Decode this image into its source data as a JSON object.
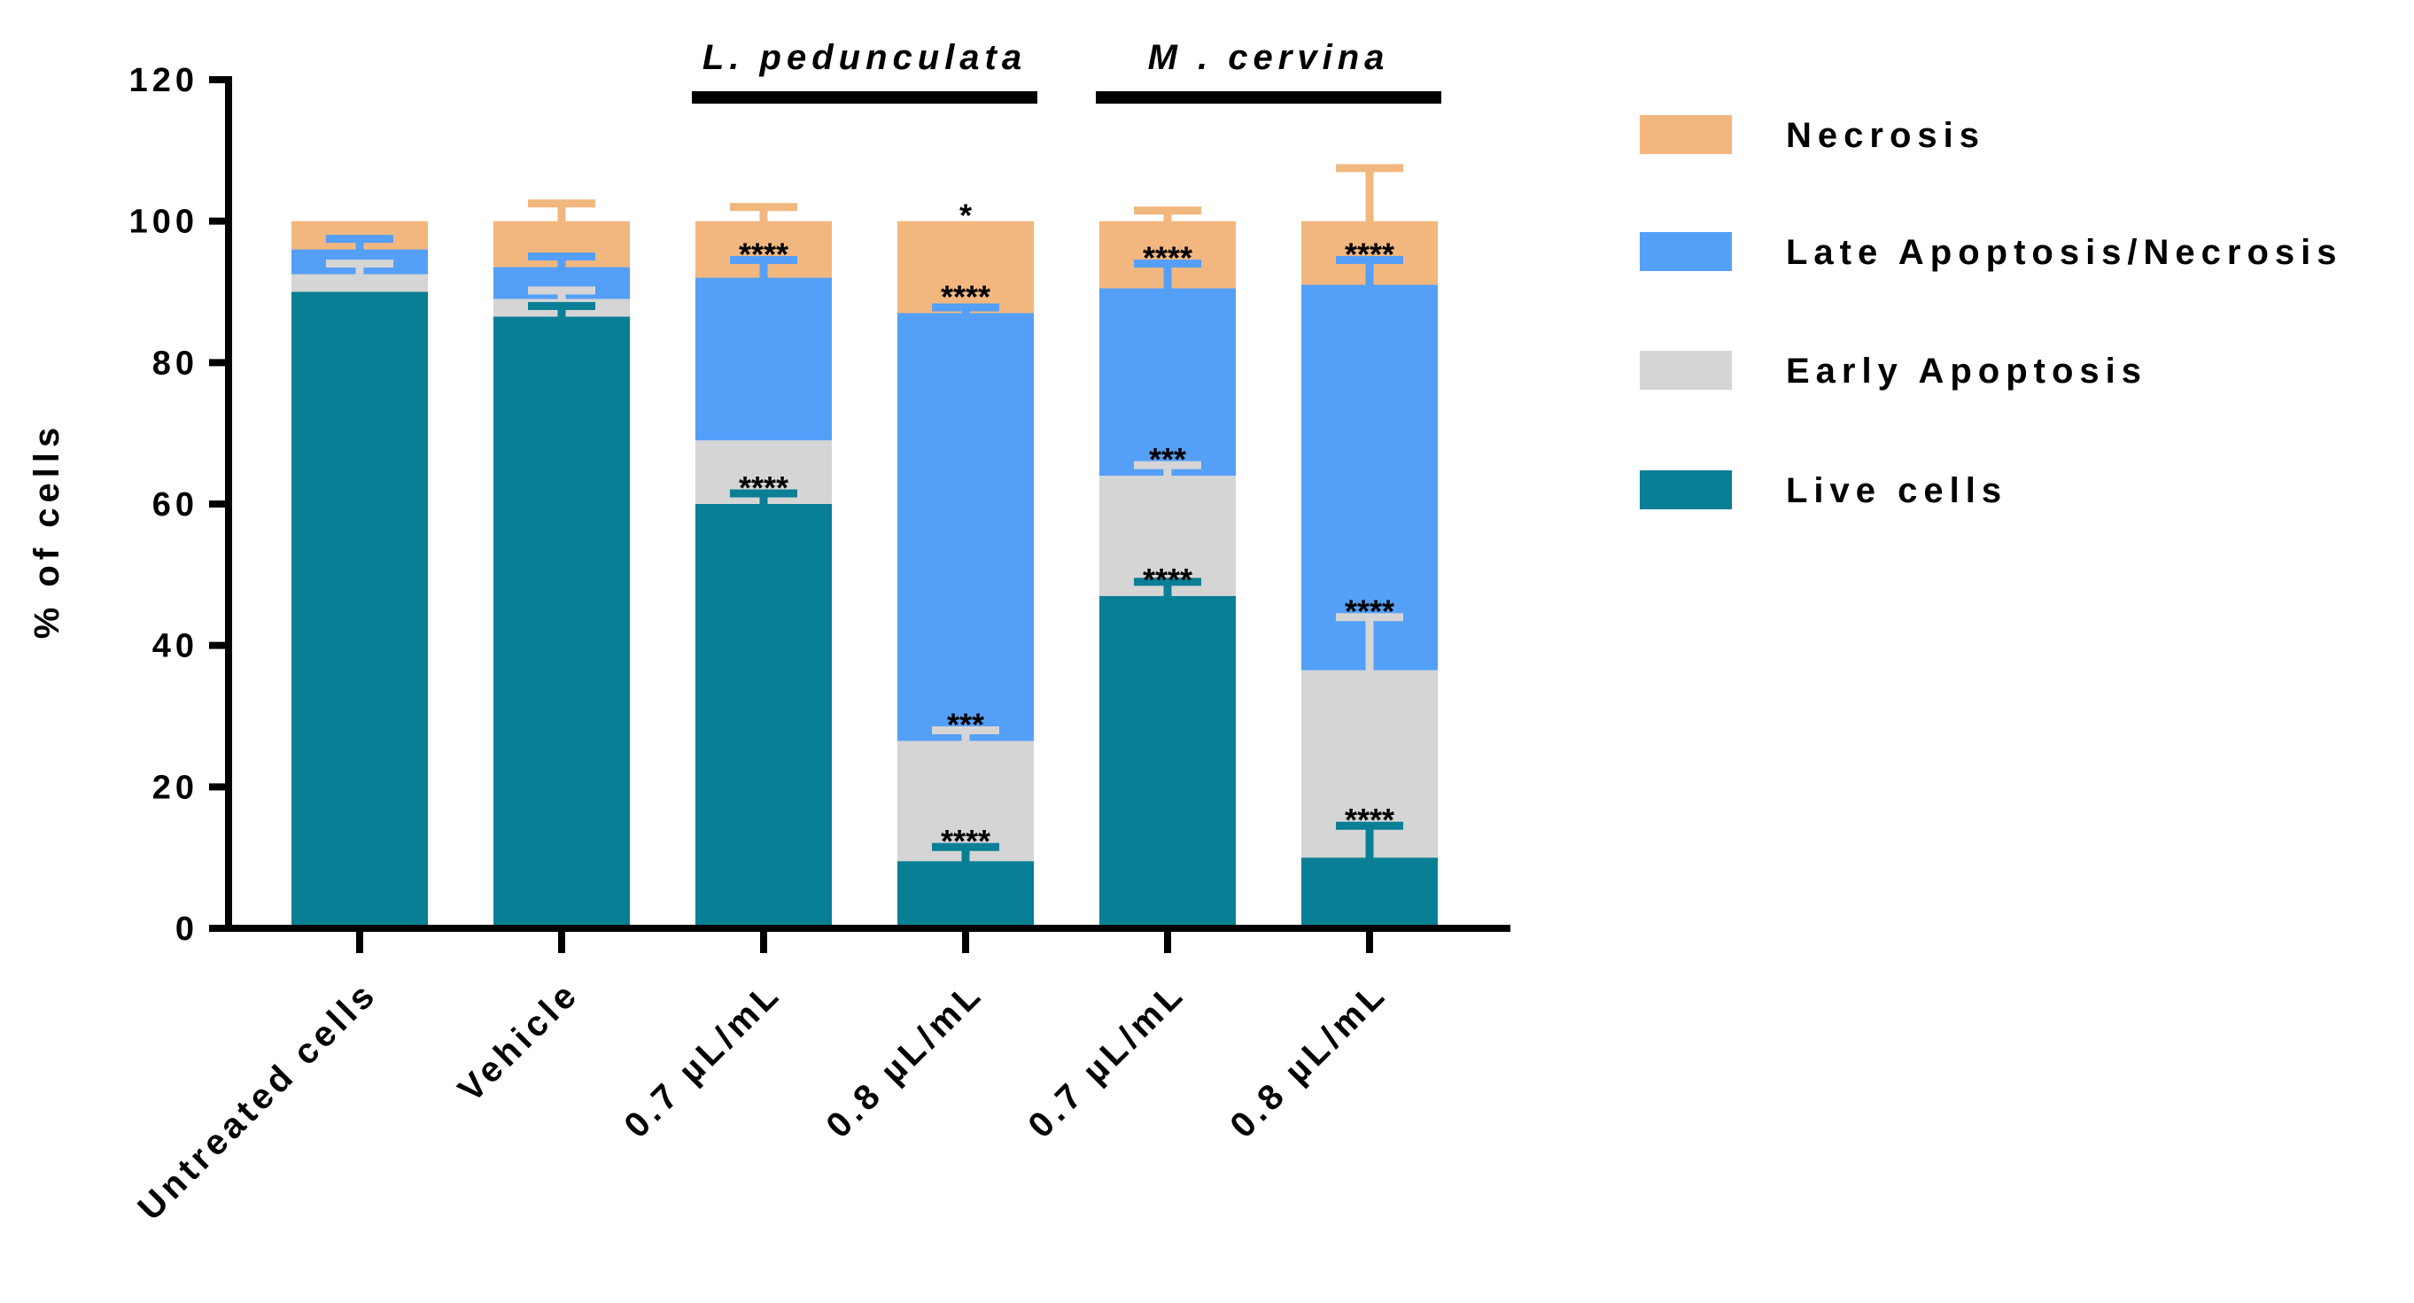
{
  "chart_data": {
    "type": "stacked-bar",
    "ylabel": "% of cells",
    "xlabel": "",
    "ylim": [
      0,
      120
    ],
    "yticks": [
      0,
      20,
      40,
      60,
      80,
      100,
      120
    ],
    "categories": [
      "Untreated cells",
      "Vehicle",
      "0.7 µL/mL",
      "0.8 µL/mL",
      "0.7 µL/mL",
      "0.8 µL/mL"
    ],
    "groups": [
      {
        "label": "L. pedunculata",
        "categories": [
          2,
          3
        ]
      },
      {
        "label": "M . cervina",
        "categories": [
          4,
          5
        ]
      }
    ],
    "series": [
      {
        "name": "Live cells",
        "color": "#087F95",
        "values": [
          90,
          86.5,
          60,
          9.5,
          47,
          10
        ],
        "errors": [
          0,
          1.5,
          1.5,
          2,
          2,
          4.5
        ]
      },
      {
        "name": "Early Apoptosis",
        "color": "#D5D5D5",
        "values": [
          2.5,
          2.5,
          9,
          17,
          17,
          26.5
        ],
        "errors": [
          1.5,
          1.2,
          0,
          1.5,
          1.5,
          7.5
        ]
      },
      {
        "name": "Late Apoptosis/Necrosis",
        "color": "#549FF8",
        "values": [
          3.5,
          4.5,
          23,
          60.5,
          26.5,
          54.5
        ],
        "errors": [
          1.5,
          1.5,
          2.5,
          0.8,
          3.5,
          3.5
        ]
      },
      {
        "name": "Necrosis",
        "color": "#F2B77E",
        "values": [
          4,
          6.5,
          8,
          13,
          9.5,
          9
        ],
        "errors": [
          0,
          2.5,
          2,
          0,
          1.5,
          7.5
        ]
      }
    ],
    "annotations": [
      {
        "category": 2,
        "value": 94.5,
        "text": "****"
      },
      {
        "category": 2,
        "value": 61.5,
        "text": "****"
      },
      {
        "category": 3,
        "value": 100,
        "text": "*"
      },
      {
        "category": 3,
        "value": 88.5,
        "text": "****"
      },
      {
        "category": 3,
        "value": 28,
        "text": "***"
      },
      {
        "category": 3,
        "value": 11.5,
        "text": "****"
      },
      {
        "category": 4,
        "value": 94,
        "text": "****"
      },
      {
        "category": 4,
        "value": 65.5,
        "text": "***"
      },
      {
        "category": 4,
        "value": 48.5,
        "text": "****"
      },
      {
        "category": 5,
        "value": 94.5,
        "text": "****"
      },
      {
        "category": 5,
        "value": 44,
        "text": "****"
      },
      {
        "category": 5,
        "value": 14.5,
        "text": "****"
      }
    ],
    "legend_order": [
      "Necrosis",
      "Late Apoptosis/Necrosis",
      "Early Apoptosis",
      "Live cells"
    ],
    "legend_position": "right",
    "grid": false
  }
}
